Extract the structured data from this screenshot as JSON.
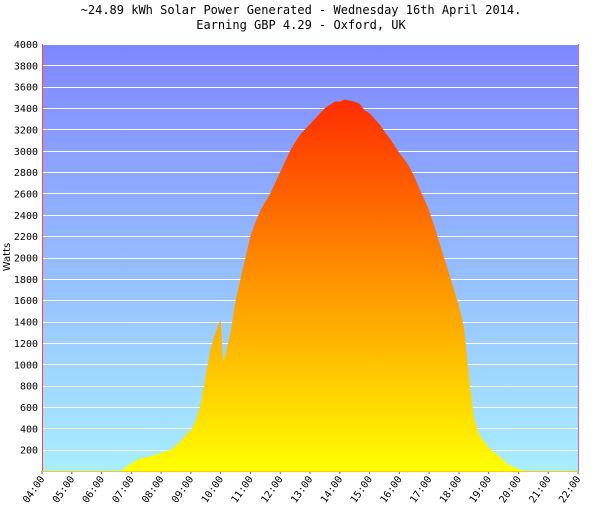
{
  "chart_data": {
    "type": "area",
    "title": "~24.89 kWh Solar Power Generated - Wednesday 16th April 2014.",
    "subtitle": "Earning GBP 4.29 - Oxford, UK",
    "xlabel": "",
    "ylabel": "Watts",
    "x_tick_labels": [
      "04:00",
      "05:00",
      "06:00",
      "07:00",
      "08:00",
      "09:00",
      "10:00",
      "11:00",
      "12:00",
      "13:00",
      "14:00",
      "15:00",
      "16:00",
      "17:00",
      "18:00",
      "19:00",
      "20:00",
      "21:00",
      "22:00"
    ],
    "y_ticks": [
      200,
      400,
      600,
      800,
      1000,
      1200,
      1400,
      1600,
      1800,
      2000,
      2200,
      2400,
      2600,
      2800,
      3000,
      3200,
      3400,
      3600,
      3800,
      4000
    ],
    "xlim_hours": [
      4,
      22
    ],
    "ylim": [
      0,
      4000
    ],
    "grid": true,
    "legend": "none",
    "background_gradient": [
      "#7f87ff",
      "#a8eeff"
    ],
    "fill_gradient": [
      "#ff2a00",
      "#ffff00"
    ],
    "series": [
      {
        "x": [
          "06:40",
          "06:50",
          "07:00",
          "07:10",
          "07:20",
          "07:40",
          "08:00",
          "08:20",
          "08:40",
          "08:50",
          "09:00",
          "09:10",
          "09:20",
          "09:30",
          "09:40",
          "09:50",
          "10:00",
          "10:03",
          "10:05",
          "10:10",
          "10:20",
          "10:30",
          "10:40",
          "10:50",
          "11:00",
          "11:10",
          "11:20",
          "11:30",
          "11:40",
          "11:50",
          "12:00",
          "12:10",
          "12:20",
          "12:30",
          "12:40",
          "12:50",
          "13:00",
          "13:10",
          "13:20",
          "13:30",
          "13:40",
          "13:50",
          "14:00",
          "14:10",
          "14:20",
          "14:30",
          "14:40",
          "14:50",
          "15:00",
          "15:10",
          "15:20",
          "15:30",
          "15:40",
          "15:50",
          "16:00",
          "16:10",
          "16:20",
          "16:30",
          "16:40",
          "16:50",
          "17:00",
          "17:10",
          "17:20",
          "17:30",
          "17:40",
          "17:50",
          "18:00",
          "18:10",
          "18:20",
          "18:30",
          "18:40",
          "18:50",
          "19:00",
          "19:10",
          "19:20",
          "19:30",
          "19:40",
          "19:50",
          "20:00",
          "20:10"
        ],
        "y": [
          0,
          40,
          70,
          100,
          120,
          140,
          170,
          200,
          280,
          340,
          380,
          470,
          630,
          900,
          1150,
          1300,
          1420,
          1150,
          1030,
          1100,
          1300,
          1600,
          1800,
          2000,
          2200,
          2330,
          2440,
          2520,
          2600,
          2700,
          2800,
          2900,
          3000,
          3080,
          3150,
          3200,
          3250,
          3300,
          3350,
          3400,
          3430,
          3460,
          3460,
          3480,
          3470,
          3460,
          3440,
          3380,
          3350,
          3300,
          3250,
          3180,
          3120,
          3050,
          2980,
          2920,
          2850,
          2760,
          2650,
          2550,
          2440,
          2300,
          2150,
          2000,
          1850,
          1700,
          1550,
          1350,
          900,
          500,
          350,
          280,
          220,
          180,
          140,
          100,
          60,
          40,
          20,
          0
        ]
      }
    ]
  }
}
